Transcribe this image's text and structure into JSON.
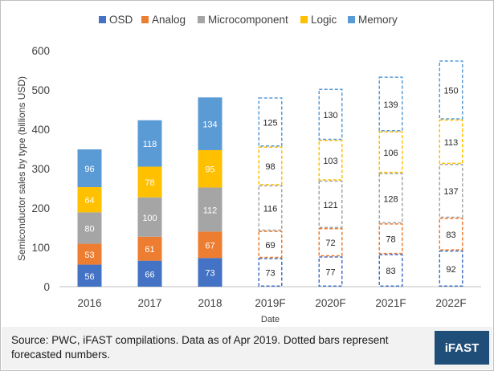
{
  "chart_data": {
    "type": "bar",
    "stacked": true,
    "categories": [
      "2016",
      "2017",
      "2018",
      "2019F",
      "2020F",
      "2021F",
      "2022F"
    ],
    "forecast_categories": [
      "2019F",
      "2020F",
      "2021F",
      "2022F"
    ],
    "series": [
      {
        "name": "OSD",
        "color": "#4472c4",
        "values": [
          56,
          66,
          73,
          73,
          77,
          83,
          92
        ]
      },
      {
        "name": "Analog",
        "color": "#ed7d31",
        "values": [
          53,
          61,
          67,
          69,
          72,
          78,
          83
        ]
      },
      {
        "name": "Microcomponent",
        "color": "#a5a5a5",
        "values": [
          80,
          100,
          112,
          116,
          121,
          128,
          137
        ]
      },
      {
        "name": "Logic",
        "color": "#ffc000",
        "values": [
          64,
          78,
          95,
          98,
          103,
          106,
          113
        ]
      },
      {
        "name": "Memory",
        "color": "#5b9bd5",
        "values": [
          96,
          118,
          134,
          125,
          130,
          139,
          150
        ]
      }
    ],
    "xlabel": "Date",
    "ylabel": "Semiconductor sales by type (billions USD)",
    "ylim": [
      0,
      600
    ],
    "yticks": [
      "0",
      "100",
      "200",
      "300",
      "400",
      "500",
      "600"
    ],
    "legend_position": "top",
    "grid": false
  },
  "footer": {
    "source": "Source: PWC, iFAST compilations. Data as of Apr 2019. Dotted bars represent forecasted numbers.",
    "logo": "iFAST"
  }
}
